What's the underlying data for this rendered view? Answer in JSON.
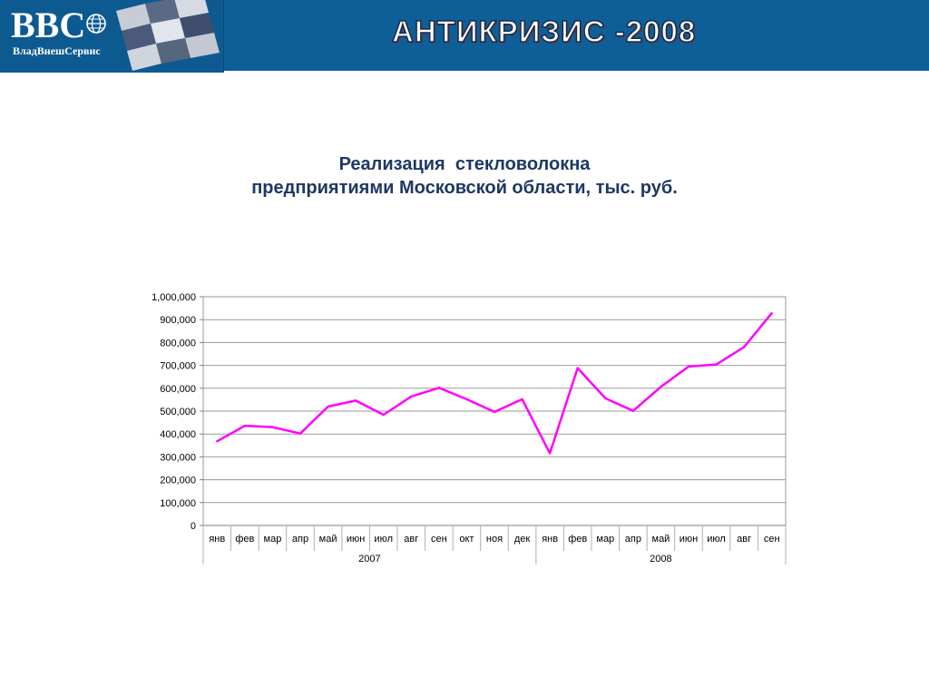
{
  "header": {
    "logo_text": "BBC",
    "logo_subtitle": "ВладВнешСервис",
    "title": "АНТИКРИЗИС -2008",
    "icons": [
      "globe-icon",
      "checkerboard-graphic"
    ],
    "colors": {
      "header_bg": "#0e5f98",
      "line": "#ff00ff"
    }
  },
  "slide": {
    "title_line1": "Реализация  стекловолокна",
    "title_line2": "предприятиями Московской области, тыс. руб."
  },
  "chart_data": {
    "type": "line",
    "title": "Реализация  стекловолокна предприятиями Московской области, тыс. руб.",
    "categories": [
      "янв",
      "фев",
      "мар",
      "апр",
      "май",
      "июн",
      "июл",
      "авг",
      "сен",
      "окт",
      "ноя",
      "дек",
      "янв",
      "фев",
      "мар",
      "апр",
      "май",
      "июн",
      "июл",
      "авг",
      "сен"
    ],
    "groups": [
      {
        "label": "2007",
        "count": 12
      },
      {
        "label": "2008",
        "count": 9
      }
    ],
    "values": [
      368000,
      436000,
      430000,
      402000,
      520000,
      546000,
      484000,
      564000,
      602000,
      552000,
      497000,
      552000,
      316000,
      688000,
      556000,
      501000,
      606000,
      695000,
      704000,
      780000,
      928000
    ],
    "yticks": [
      "0",
      "100,000",
      "200,000",
      "300,000",
      "400,000",
      "500,000",
      "600,000",
      "700,000",
      "800,000",
      "900,000",
      "1,000,000"
    ],
    "ylim": [
      0,
      1000000
    ],
    "grid": true,
    "legend": "none"
  }
}
